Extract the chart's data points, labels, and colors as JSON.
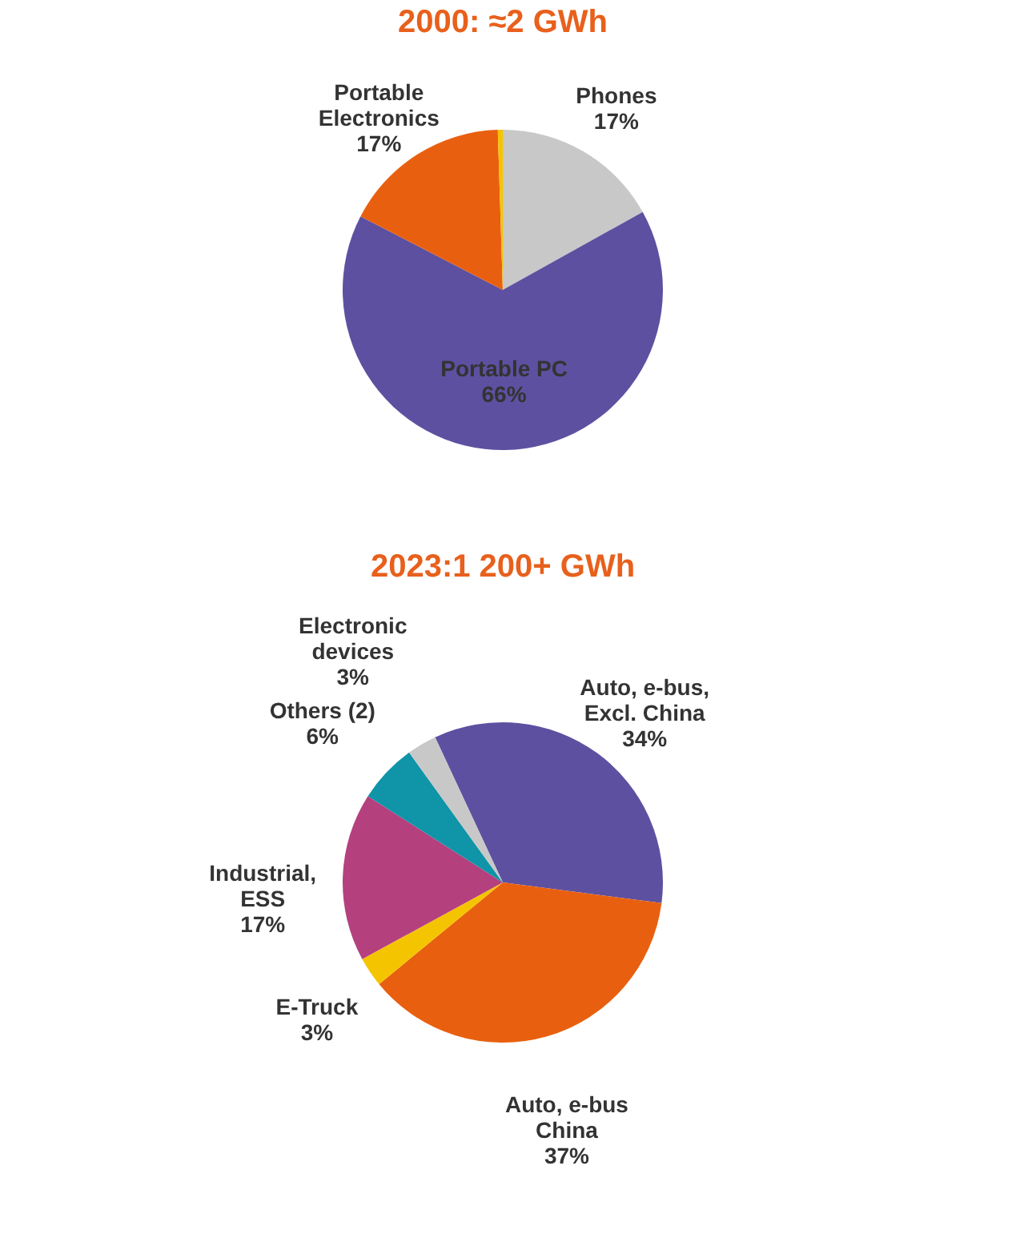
{
  "chart_data": [
    {
      "type": "pie",
      "title": "2000: ≈2 GWh",
      "categories": [
        "Phones",
        "Portable PC",
        "Portable Electronics",
        null
      ],
      "values": [
        17,
        66,
        17,
        0.5
      ],
      "colors": [
        "#c8c8c8",
        "#5e50a0",
        "#e8600f",
        "#f5c400"
      ],
      "value_labels": [
        "17%",
        "66%",
        "17%",
        null
      ]
    },
    {
      "type": "pie",
      "title": "2023:1 200+ GWh",
      "categories": [
        "Auto, e-bus, Excl. China",
        "Auto, e-bus China",
        "E-Truck",
        "Industrial, ESS",
        "Others (2)",
        "Electronic devices"
      ],
      "values": [
        34,
        37,
        3,
        17,
        6,
        3
      ],
      "colors": [
        "#5e50a0",
        "#e8600f",
        "#f5c400",
        "#b5407e",
        "#0f94a8",
        "#c8c8c8"
      ],
      "value_labels": [
        "34%",
        "37%",
        "3%",
        "17%",
        "6%",
        "3%"
      ]
    }
  ]
}
